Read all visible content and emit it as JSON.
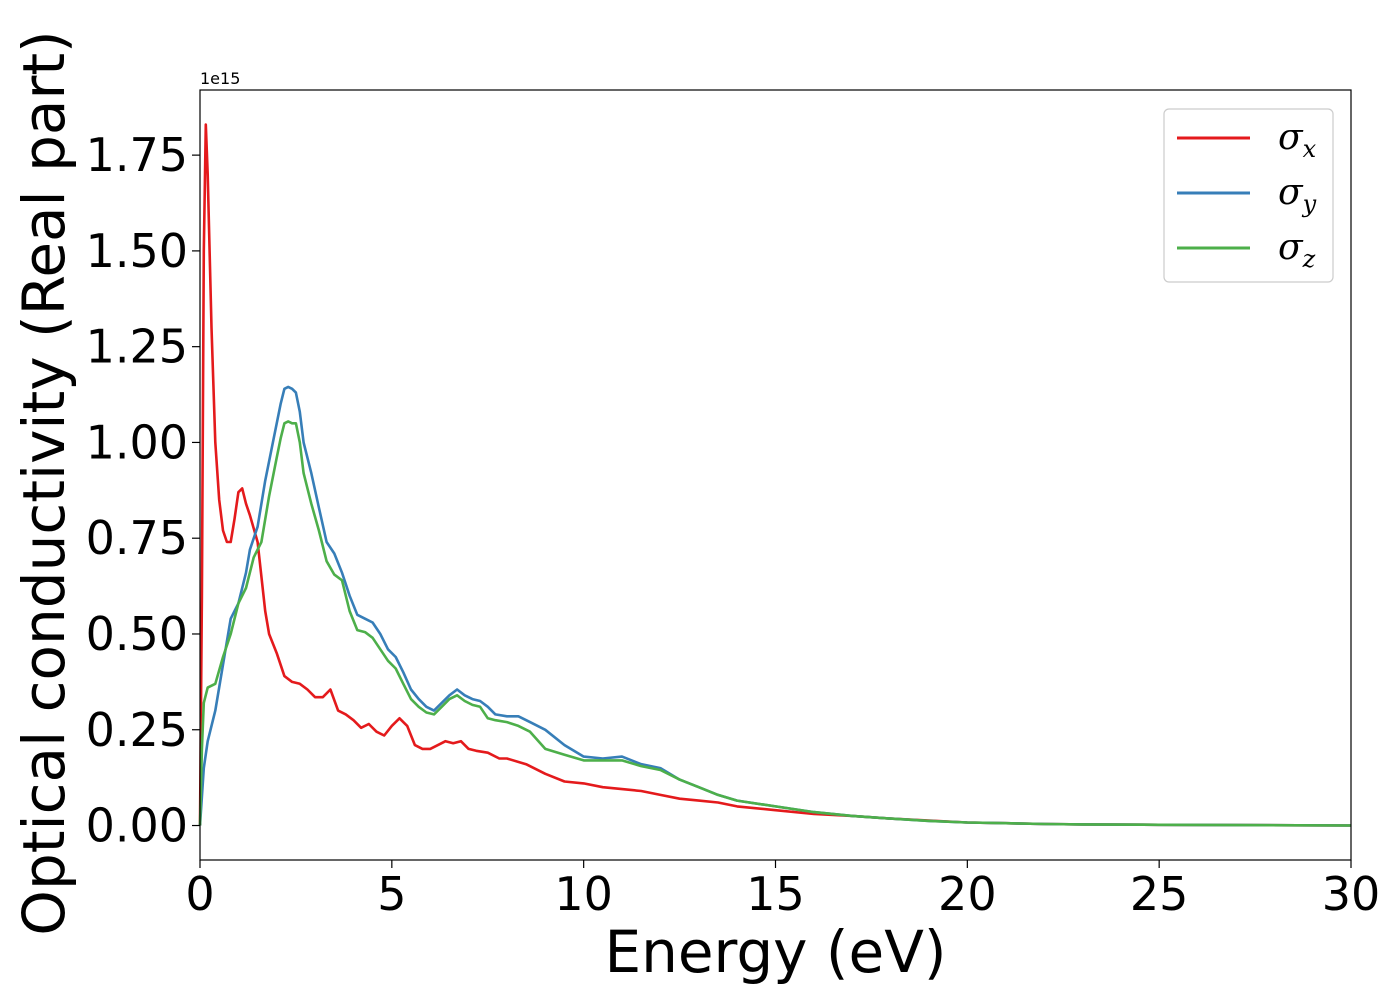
{
  "chart_data": {
    "type": "line",
    "title": "",
    "xlabel": "Energy (eV)",
    "ylabel": "Optical conductivity (Real part)",
    "y_offset_label": "1e15",
    "xlim": [
      0,
      30
    ],
    "ylim": [
      -0.09,
      1.92
    ],
    "xticks": [
      0,
      5,
      10,
      15,
      20,
      25,
      30
    ],
    "xtick_labels": [
      "0",
      "5",
      "10",
      "15",
      "20",
      "25",
      "30"
    ],
    "yticks": [
      0.0,
      0.25,
      0.5,
      0.75,
      1.0,
      1.25,
      1.5,
      1.75
    ],
    "ytick_labels": [
      "0.00",
      "0.25",
      "0.50",
      "0.75",
      "1.00",
      "1.25",
      "1.50",
      "1.75"
    ],
    "grid": false,
    "legend_position": "upper right",
    "series": [
      {
        "name": "σ_x",
        "name_main": "σ",
        "name_sub": "x",
        "color": "#e41a1c",
        "x": [
          0,
          0.05,
          0.1,
          0.15,
          0.2,
          0.3,
          0.4,
          0.5,
          0.6,
          0.7,
          0.8,
          0.9,
          1.0,
          1.1,
          1.2,
          1.3,
          1.5,
          1.7,
          1.8,
          2.0,
          2.2,
          2.4,
          2.6,
          2.8,
          3.0,
          3.2,
          3.4,
          3.6,
          3.8,
          4.0,
          4.2,
          4.4,
          4.6,
          4.8,
          5.0,
          5.2,
          5.4,
          5.6,
          5.8,
          6.0,
          6.2,
          6.4,
          6.6,
          6.8,
          7.0,
          7.2,
          7.5,
          7.8,
          8.0,
          8.5,
          9.0,
          9.5,
          10.0,
          10.5,
          11.0,
          11.5,
          12.0,
          12.5,
          13.0,
          13.5,
          14.0,
          15.0,
          16.0,
          17.0,
          18.0,
          19.0,
          20.0,
          21.0,
          22.0,
          23.0,
          25.0,
          27.0,
          30.0
        ],
        "y": [
          0.0,
          0.6,
          1.5,
          1.83,
          1.7,
          1.3,
          1.0,
          0.85,
          0.77,
          0.74,
          0.74,
          0.8,
          0.87,
          0.88,
          0.84,
          0.81,
          0.74,
          0.56,
          0.5,
          0.45,
          0.39,
          0.375,
          0.37,
          0.355,
          0.335,
          0.335,
          0.355,
          0.3,
          0.29,
          0.275,
          0.255,
          0.265,
          0.245,
          0.235,
          0.26,
          0.28,
          0.26,
          0.21,
          0.2,
          0.2,
          0.21,
          0.22,
          0.215,
          0.22,
          0.2,
          0.195,
          0.19,
          0.175,
          0.175,
          0.16,
          0.135,
          0.115,
          0.11,
          0.1,
          0.095,
          0.09,
          0.08,
          0.07,
          0.065,
          0.06,
          0.05,
          0.04,
          0.03,
          0.025,
          0.018,
          0.013,
          0.008,
          0.006,
          0.004,
          0.003,
          0.002,
          0.001,
          0.0
        ]
      },
      {
        "name": "σ_y",
        "name_main": "σ",
        "name_sub": "y",
        "color": "#377eb8",
        "x": [
          0,
          0.1,
          0.2,
          0.4,
          0.6,
          0.8,
          1.0,
          1.2,
          1.3,
          1.5,
          1.7,
          1.9,
          2.1,
          2.2,
          2.3,
          2.4,
          2.5,
          2.6,
          2.7,
          2.9,
          3.1,
          3.3,
          3.5,
          3.7,
          3.9,
          4.1,
          4.3,
          4.5,
          4.7,
          4.9,
          5.1,
          5.3,
          5.5,
          5.7,
          5.9,
          6.1,
          6.3,
          6.5,
          6.7,
          6.9,
          7.1,
          7.3,
          7.5,
          7.7,
          8.0,
          8.3,
          8.6,
          9.0,
          9.5,
          10.0,
          10.5,
          11.0,
          11.5,
          12.0,
          12.5,
          13.0,
          13.5,
          14.0,
          15.0,
          16.0,
          17.0,
          18.0,
          19.0,
          20.0,
          21.0,
          22.0,
          23.0,
          25.0,
          27.0,
          30.0
        ],
        "y": [
          0.0,
          0.15,
          0.22,
          0.3,
          0.42,
          0.54,
          0.58,
          0.66,
          0.72,
          0.78,
          0.9,
          1.0,
          1.1,
          1.14,
          1.145,
          1.14,
          1.13,
          1.08,
          1.0,
          0.92,
          0.83,
          0.74,
          0.71,
          0.66,
          0.6,
          0.55,
          0.54,
          0.53,
          0.5,
          0.46,
          0.44,
          0.4,
          0.355,
          0.33,
          0.31,
          0.3,
          0.32,
          0.34,
          0.355,
          0.34,
          0.33,
          0.325,
          0.31,
          0.29,
          0.285,
          0.285,
          0.27,
          0.25,
          0.21,
          0.18,
          0.175,
          0.18,
          0.16,
          0.15,
          0.12,
          0.1,
          0.08,
          0.065,
          0.05,
          0.035,
          0.025,
          0.018,
          0.012,
          0.008,
          0.006,
          0.004,
          0.003,
          0.002,
          0.001,
          0.0
        ]
      },
      {
        "name": "σ_z",
        "name_main": "σ",
        "name_sub": "z",
        "color": "#4daf4a",
        "x": [
          0,
          0.05,
          0.1,
          0.2,
          0.4,
          0.6,
          0.8,
          1.0,
          1.2,
          1.4,
          1.6,
          1.8,
          2.0,
          2.1,
          2.2,
          2.3,
          2.4,
          2.5,
          2.6,
          2.7,
          2.9,
          3.1,
          3.3,
          3.5,
          3.7,
          3.9,
          4.1,
          4.3,
          4.5,
          4.7,
          4.9,
          5.1,
          5.3,
          5.5,
          5.7,
          5.9,
          6.1,
          6.3,
          6.5,
          6.7,
          6.9,
          7.1,
          7.3,
          7.5,
          7.7,
          8.0,
          8.3,
          8.6,
          9.0,
          9.5,
          10.0,
          10.5,
          11.0,
          11.5,
          12.0,
          12.5,
          13.0,
          13.5,
          14.0,
          15.0,
          16.0,
          17.0,
          18.0,
          19.0,
          20.0,
          21.0,
          22.0,
          23.0,
          25.0,
          27.0,
          30.0
        ],
        "y": [
          0.0,
          0.2,
          0.32,
          0.36,
          0.37,
          0.44,
          0.5,
          0.58,
          0.62,
          0.7,
          0.74,
          0.86,
          0.96,
          1.01,
          1.05,
          1.055,
          1.05,
          1.05,
          1.0,
          0.92,
          0.84,
          0.77,
          0.69,
          0.655,
          0.64,
          0.56,
          0.51,
          0.505,
          0.49,
          0.46,
          0.43,
          0.41,
          0.37,
          0.33,
          0.31,
          0.295,
          0.29,
          0.31,
          0.33,
          0.34,
          0.325,
          0.315,
          0.31,
          0.28,
          0.275,
          0.27,
          0.26,
          0.245,
          0.2,
          0.185,
          0.17,
          0.17,
          0.17,
          0.155,
          0.145,
          0.12,
          0.1,
          0.08,
          0.065,
          0.05,
          0.035,
          0.025,
          0.018,
          0.012,
          0.008,
          0.006,
          0.004,
          0.003,
          0.002,
          0.001,
          0.0
        ]
      }
    ]
  }
}
